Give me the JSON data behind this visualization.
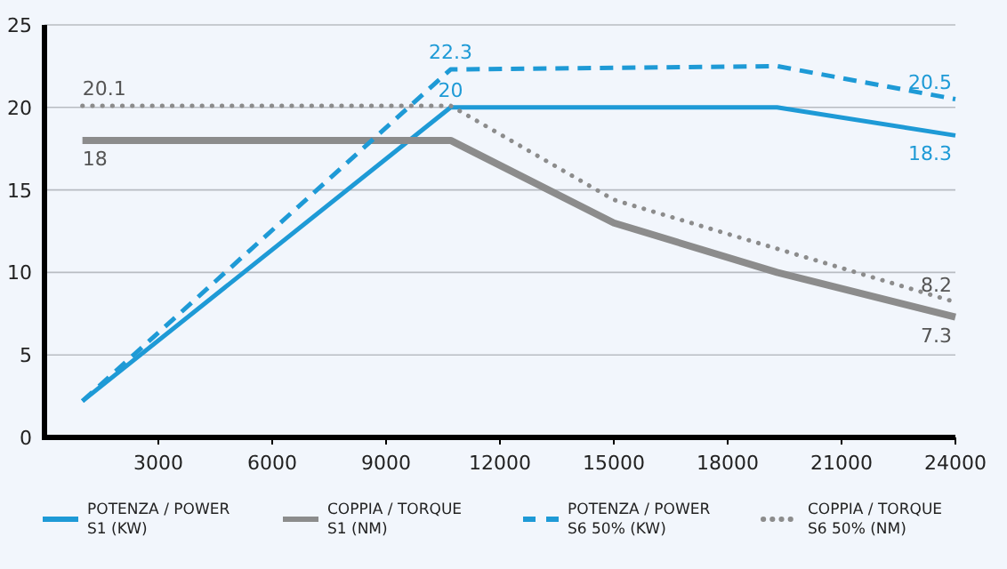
{
  "chart_data": {
    "type": "line",
    "xlim": [
      0,
      24000
    ],
    "xticks": [
      3000,
      6000,
      9000,
      12000,
      15000,
      18000,
      21000,
      24000
    ],
    "ylim": [
      0,
      25
    ],
    "yticks": [
      0,
      5,
      10,
      15,
      20,
      25
    ],
    "grid": "y",
    "legend": "bottom",
    "marker": "none",
    "series": [
      {
        "name": "POTENZA / POWER S1 (KW)",
        "color": "#1e9ad6",
        "line_style": "solid",
        "x": [
          1000,
          10700,
          19300,
          24000
        ],
        "values": [
          2.2,
          20,
          20,
          18.3
        ],
        "value_labels": [
          null,
          "20",
          null,
          "18.3"
        ]
      },
      {
        "name": "COPPIA / TORQUE S1 (NM)",
        "color": "#8c8c8c",
        "line_style": "solid",
        "x": [
          1000,
          10700,
          15000,
          19300,
          24000
        ],
        "values": [
          18,
          18,
          13,
          10,
          7.3
        ],
        "value_labels": [
          "18",
          null,
          null,
          null,
          "7.3"
        ]
      },
      {
        "name": "POTENZA / POWER S6 50% (KW)",
        "color": "#1e9ad6",
        "line_style": "dashed",
        "x": [
          1000,
          10700,
          19300,
          24000
        ],
        "values": [
          2.2,
          22.3,
          22.5,
          20.5
        ],
        "value_labels": [
          null,
          "22.3",
          null,
          "20.5"
        ]
      },
      {
        "name": "COPPIA / TORQUE S6 50% (NM)",
        "color": "#8c8c8c",
        "line_style": "dotted",
        "x": [
          1000,
          10700,
          15000,
          24000
        ],
        "values": [
          20.1,
          20.1,
          14.4,
          8.2
        ],
        "value_labels": [
          "20.1",
          null,
          null,
          "8.2"
        ]
      }
    ]
  }
}
